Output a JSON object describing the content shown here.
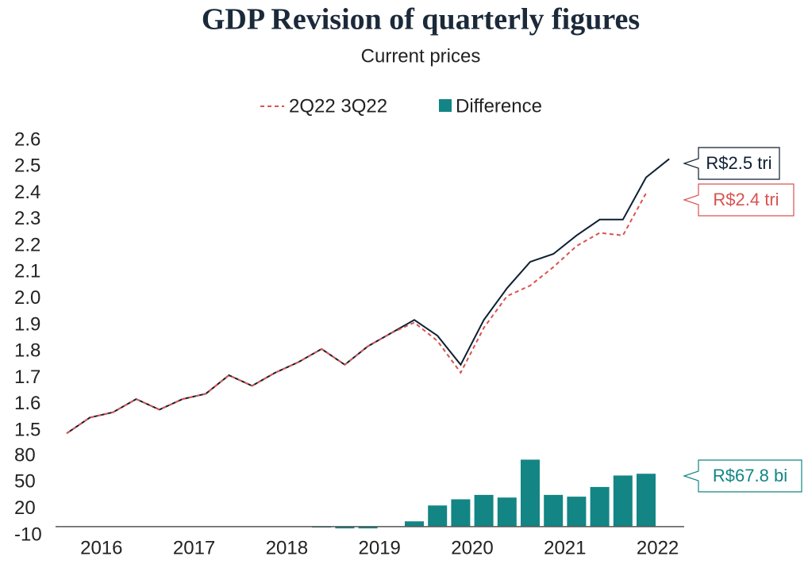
{
  "chart_data": [
    {
      "type": "line",
      "title": "GDP Revision of quarterly figures",
      "subtitle": "Current prices",
      "xticks": [
        "2016",
        "2017",
        "2018",
        "2019",
        "2020",
        "2021",
        "2022"
      ],
      "ylim": [
        1.5,
        2.6
      ],
      "yticks": [
        {
          "value": 2.6,
          "label": "2.6"
        },
        {
          "value": 2.5,
          "label": "2.5"
        },
        {
          "value": 2.4,
          "label": "2.4"
        },
        {
          "value": 2.3,
          "label": "2.3"
        },
        {
          "value": 2.2,
          "label": "2.2"
        },
        {
          "value": 2.1,
          "label": "2.1"
        },
        {
          "value": 2.0,
          "label": "2.0"
        },
        {
          "value": 1.9,
          "label": "1.9"
        },
        {
          "value": 1.8,
          "label": "1.8"
        },
        {
          "value": 1.7,
          "label": "1.7"
        },
        {
          "value": 1.6,
          "label": "1.6"
        },
        {
          "value": 1.5,
          "label": "1.5"
        }
      ],
      "series": [
        {
          "color": "#0d1f33",
          "dashed": false,
          "values": [
            1.49,
            1.55,
            1.57,
            1.62,
            1.58,
            1.62,
            1.64,
            1.71,
            1.67,
            1.72,
            1.76,
            1.81,
            1.75,
            1.82,
            1.87,
            1.92,
            1.86,
            1.75,
            1.92,
            2.04,
            2.14,
            2.17,
            2.24,
            2.3,
            2.3,
            2.46,
            2.53
          ]
        },
        {
          "name": "2Q22 3Q22",
          "color": "#d9534f",
          "dashed": true,
          "values": [
            1.49,
            1.55,
            1.57,
            1.62,
            1.58,
            1.62,
            1.64,
            1.71,
            1.67,
            1.72,
            1.76,
            1.81,
            1.75,
            1.82,
            1.87,
            1.91,
            1.84,
            1.72,
            1.89,
            2.01,
            2.05,
            2.12,
            2.2,
            2.25,
            2.24,
            2.4,
            null
          ]
        }
      ],
      "annotations": [
        {
          "text": "R$2.5 tri",
          "color": "#0d1f33"
        },
        {
          "text": "R$2.4 tri",
          "color": "#d9534f"
        }
      ]
    },
    {
      "type": "bar",
      "ylim": [
        -10,
        80
      ],
      "yticks": [
        80,
        50,
        20,
        -10
      ],
      "series": [
        {
          "name": "Difference",
          "color": "#138585",
          "values": [
            0,
            0,
            0,
            0,
            0,
            0,
            0,
            -0.5,
            -0.5,
            0,
            0,
            -1,
            -2,
            -2,
            0,
            6,
            24,
            31,
            36,
            33,
            76,
            36,
            34,
            45,
            58,
            60
          ]
        }
      ],
      "annotations": [
        {
          "text": "R$67.8 bi",
          "color": "#138585"
        }
      ]
    }
  ]
}
